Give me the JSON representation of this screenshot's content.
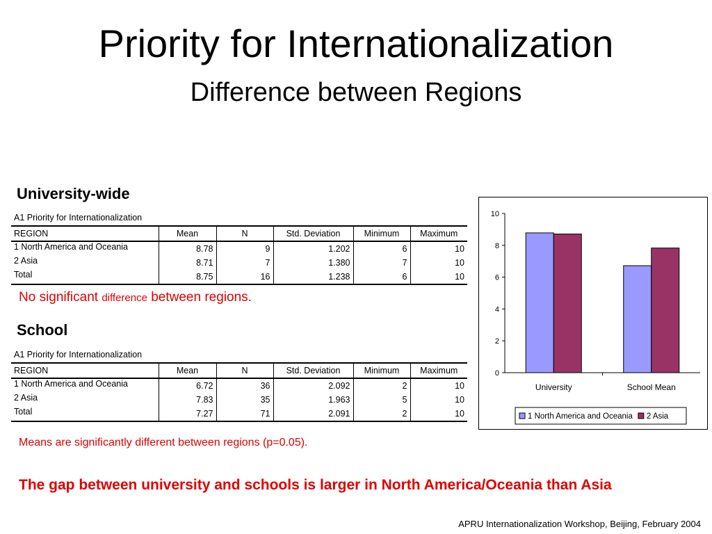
{
  "slide": {
    "title": "Priority for Internationalization",
    "subtitle": "Difference between Regions",
    "footer": "APRU Internationalization Workshop, Beijing, February 2004"
  },
  "university": {
    "heading": "University-wide",
    "caption": "A1  Priority for Internationalization",
    "columns": [
      "REGION",
      "Mean",
      "N",
      "Std. Deviation",
      "Minimum",
      "Maximum"
    ],
    "rows": [
      [
        "1  North America and Oceania",
        "8.78",
        "9",
        "1.202",
        "6",
        "10"
      ],
      [
        "2  Asia",
        "8.71",
        "7",
        "1.380",
        "7",
        "10"
      ],
      [
        "Total",
        "8.75",
        "16",
        "1.238",
        "6",
        "10"
      ]
    ],
    "note_prefix": "No significant ",
    "note_small": "difference",
    "note_suffix": " between regions."
  },
  "school": {
    "heading": "School",
    "caption": "A1  Priority for Internationalization",
    "columns": [
      "REGION",
      "Mean",
      "N",
      "Std. Deviation",
      "Minimum",
      "Maximum"
    ],
    "rows": [
      [
        "1  North America and Oceania",
        "6.72",
        "36",
        "2.092",
        "2",
        "10"
      ],
      [
        "2  Asia",
        "7.83",
        "35",
        "1.963",
        "5",
        "10"
      ],
      [
        "Total",
        "7.27",
        "71",
        "2.091",
        "2",
        "10"
      ]
    ],
    "note": "Means are significantly different between regions (p=0.05)."
  },
  "conclusion": "The gap between university and schools is larger in North America/Oceania than Asia",
  "colors": {
    "red_text": "#e00000",
    "series1": "#9999ff",
    "series2": "#993366"
  },
  "chart_data": {
    "type": "bar",
    "categories": [
      "University",
      "School Mean"
    ],
    "series": [
      {
        "name": "1  North America and Oceania",
        "values": [
          8.78,
          6.72
        ],
        "color": "#9999ff"
      },
      {
        "name": "2  Asia",
        "values": [
          8.71,
          7.83
        ],
        "color": "#993366"
      }
    ],
    "ylim": [
      0,
      10
    ],
    "yticks": [
      0,
      2,
      4,
      6,
      8,
      10
    ],
    "legend": "bottom",
    "grid": false
  }
}
